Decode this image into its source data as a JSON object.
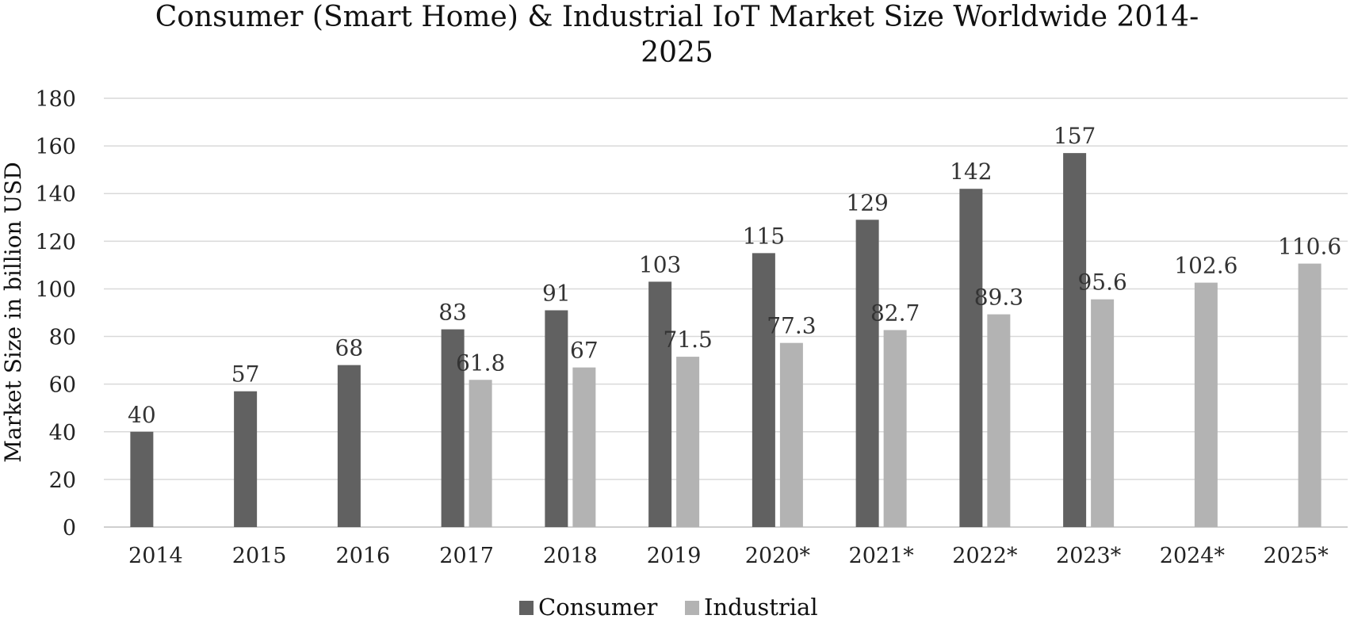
{
  "chart_data": {
    "type": "bar",
    "title": "Consumer (Smart Home) & Industrial IoT Market Size Worldwide 2014-2025",
    "title_lines": [
      "Consumer (Smart Home) & Industrial IoT Market Size Worldwide 2014-",
      "2025"
    ],
    "xlabel": "",
    "ylabel": "Market Size in billion USD",
    "ylim": [
      0,
      180
    ],
    "yticks": [
      0,
      20,
      40,
      60,
      80,
      100,
      120,
      140,
      160,
      180
    ],
    "grid": true,
    "legend_position": "bottom",
    "categories": [
      "2014",
      "2015",
      "2016",
      "2017",
      "2018",
      "2019",
      "2020*",
      "2021*",
      "2022*",
      "2023*",
      "2024*",
      "2025*"
    ],
    "series": [
      {
        "name": "Consumer",
        "color": "#616161",
        "values": [
          40,
          57,
          68,
          83,
          91,
          103,
          115,
          129,
          142,
          157,
          null,
          null
        ],
        "labels": [
          "40",
          "57",
          "68",
          "83",
          "91",
          "103",
          "115",
          "129",
          "142",
          "157",
          "",
          ""
        ]
      },
      {
        "name": "Industrial",
        "color": "#b3b3b3",
        "values": [
          null,
          null,
          null,
          61.8,
          67,
          71.5,
          77.3,
          82.7,
          89.3,
          95.6,
          102.6,
          110.6
        ],
        "labels": [
          "",
          "",
          "",
          "61.8",
          "67",
          "71.5",
          "77.3",
          "82.7",
          "89.3",
          "95.6",
          "102.6",
          "110.6"
        ]
      }
    ]
  }
}
